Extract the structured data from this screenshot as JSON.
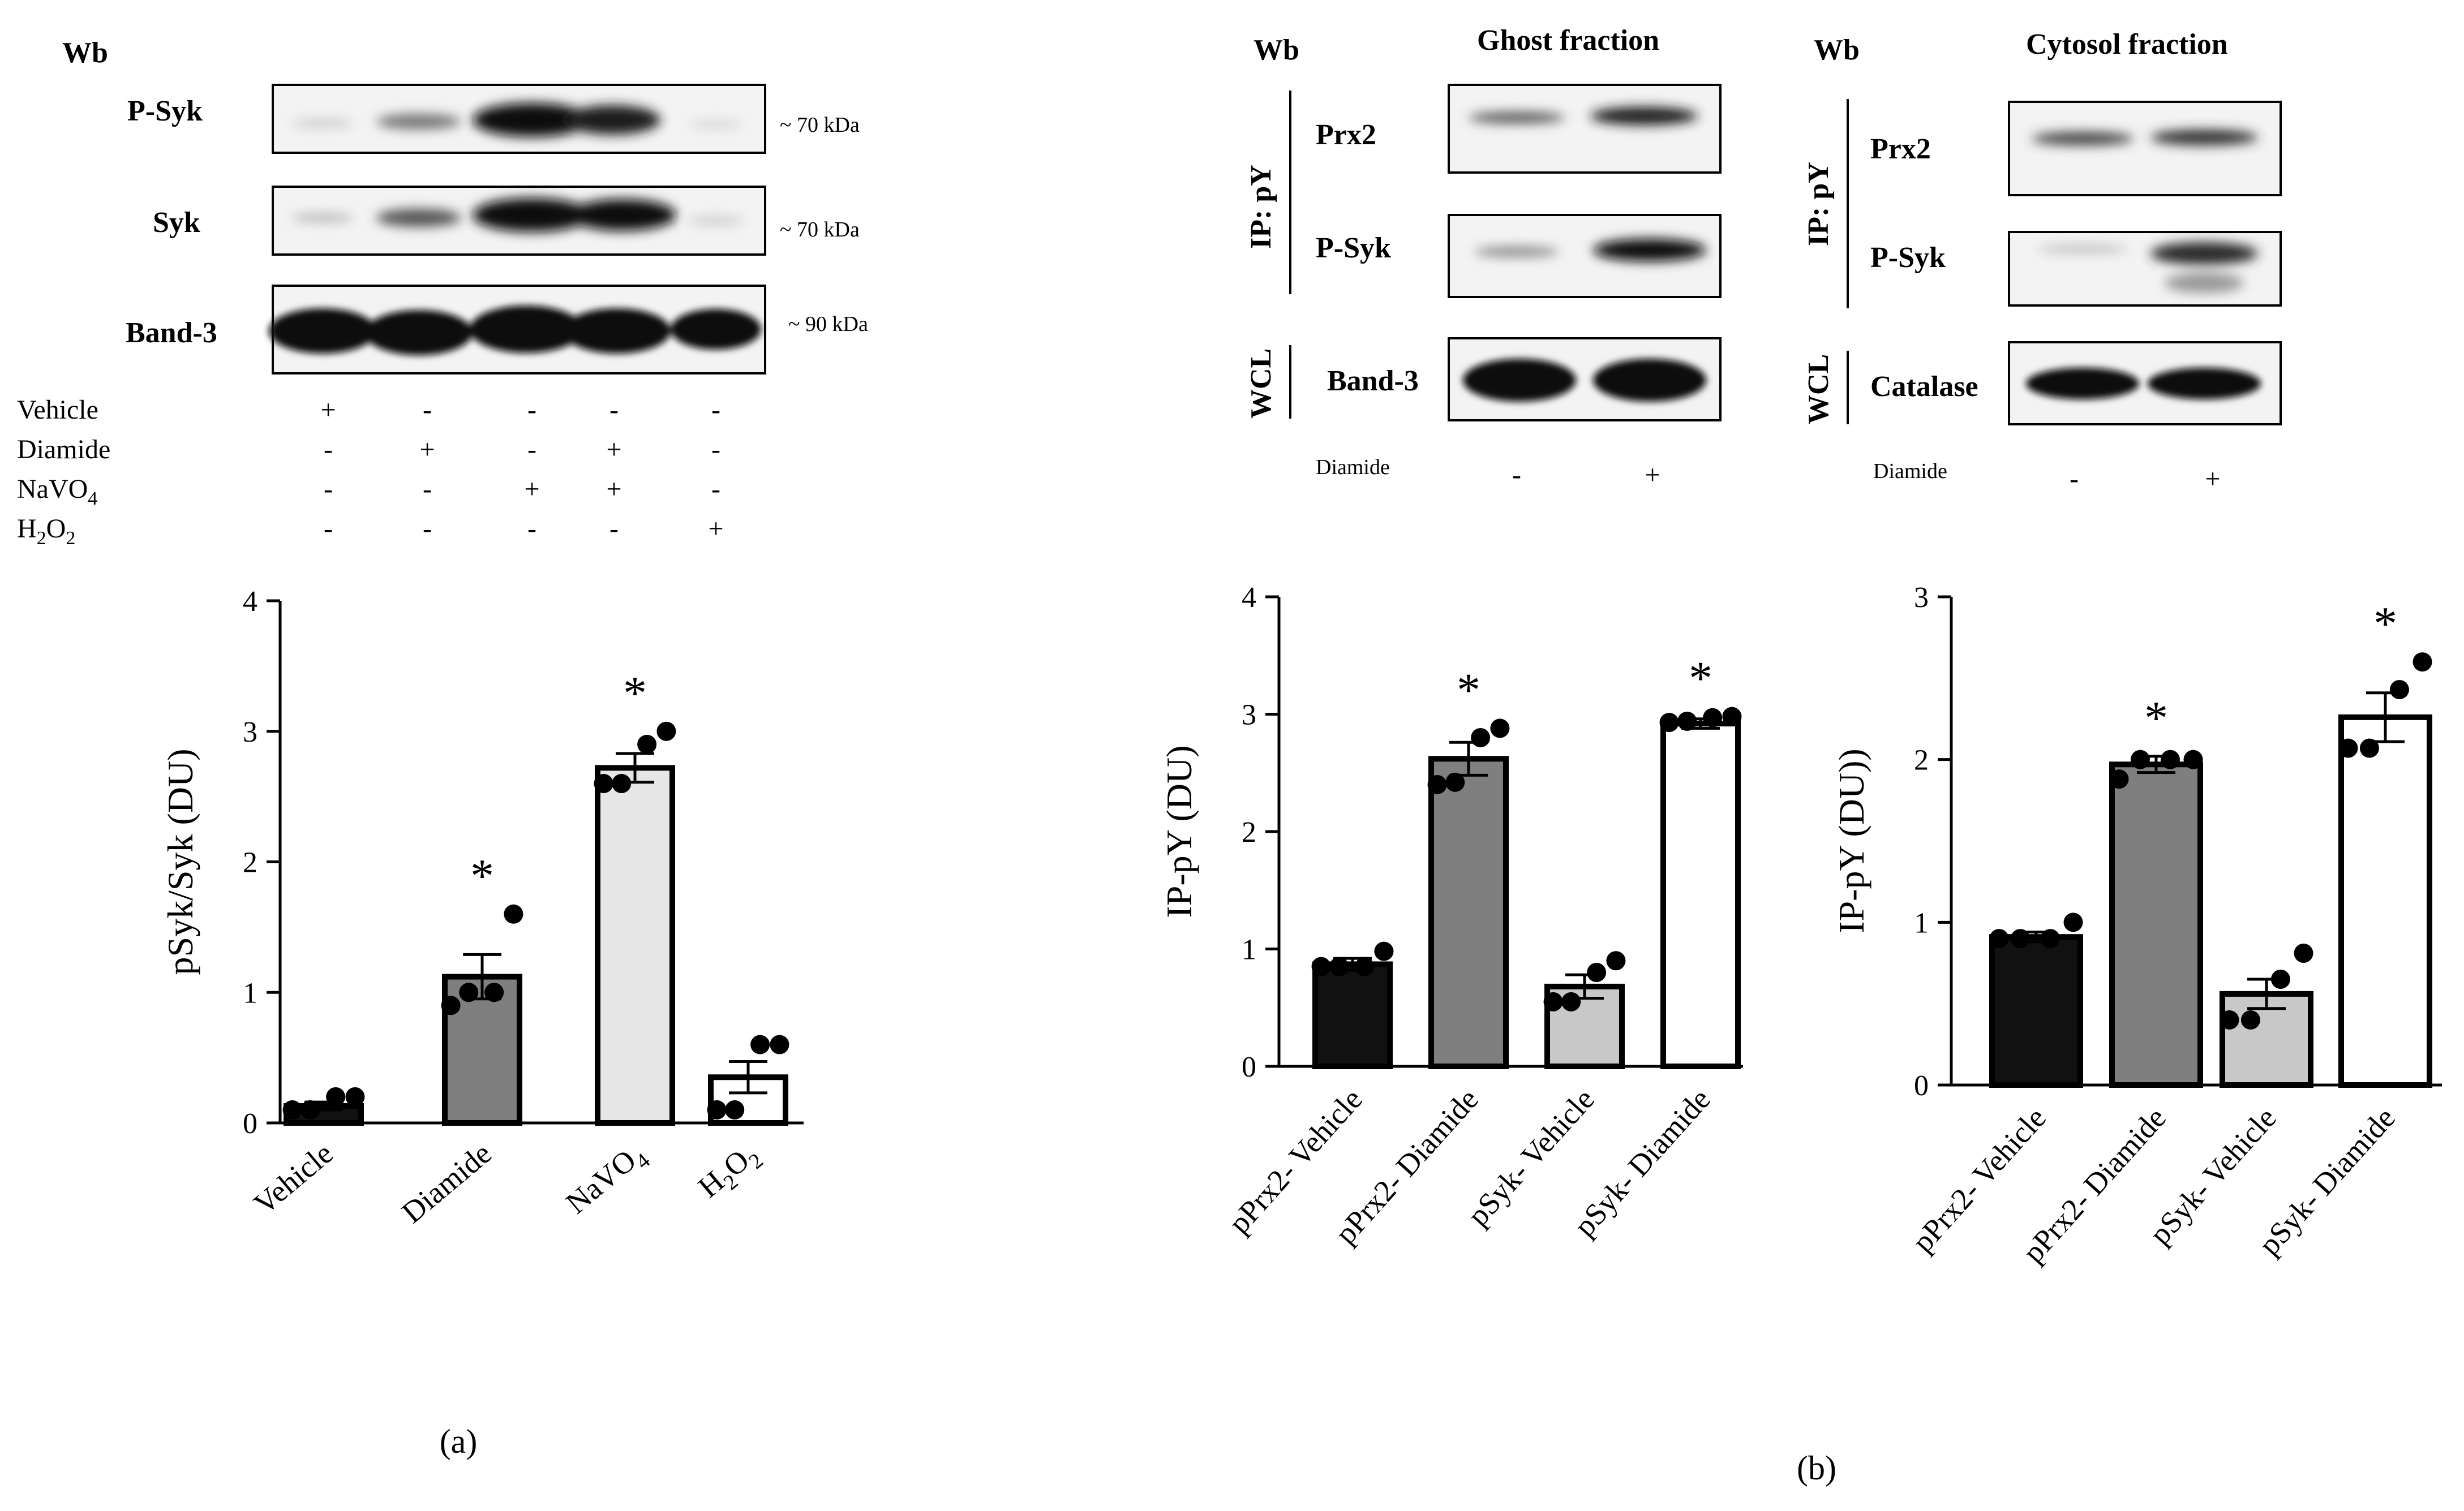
{
  "panel_a": {
    "label": "(a)",
    "blot": {
      "header": "Wb",
      "rows": [
        {
          "label": "P-Syk",
          "size": "~ 70 kDa"
        },
        {
          "label": "Syk",
          "size": "~ 70 kDa"
        },
        {
          "label": "Band-3",
          "size": "~ 90 kDa"
        }
      ],
      "treatments": [
        {
          "label": "Vehicle",
          "marks": [
            "+",
            "-",
            "-",
            "-",
            "-"
          ]
        },
        {
          "label": "Diamide",
          "marks": [
            "-",
            "+",
            "-",
            "+",
            "-"
          ]
        },
        {
          "label": "NaVO",
          "sub": "4",
          "marks": [
            "-",
            "-",
            "+",
            "+",
            "-"
          ]
        },
        {
          "label": "H",
          "sub": "2",
          "label2": "O",
          "sub2": "2",
          "marks": [
            "-",
            "-",
            "-",
            "-",
            "+"
          ]
        }
      ]
    }
  },
  "panel_b": {
    "label": "(b)",
    "blots": [
      {
        "header": "Wb",
        "title": "Ghost fraction",
        "ip_label": "IP: pY",
        "wcl_label": "WCL",
        "rows": [
          "Prx2",
          "P-Syk",
          "Band-3"
        ],
        "diamide_label": "Diamide",
        "marks": [
          "-",
          "+"
        ]
      },
      {
        "header": "Wb",
        "title": "Cytosol fraction",
        "ip_label": "IP: pY",
        "wcl_label": "WCL",
        "rows": [
          "Prx2",
          "P-Syk",
          "Catalase"
        ],
        "diamide_label": "Diamide",
        "marks": [
          "-",
          "+"
        ]
      }
    ]
  },
  "chart_data": [
    {
      "type": "bar",
      "panel": "a",
      "categories": [
        "Vehicle",
        "Diamide",
        "NaVO4",
        "H2O2"
      ],
      "category_labels": [
        {
          "t": "Vehicle"
        },
        {
          "t": "Diamide"
        },
        {
          "t": "NaVO",
          "sub": "4"
        },
        {
          "t": "H",
          "sub": "2",
          "t2": "O",
          "sub2": "2"
        }
      ],
      "values": [
        0.13,
        1.12,
        2.72,
        0.35
      ],
      "errors": [
        0.03,
        0.17,
        0.11,
        0.12
      ],
      "points": [
        [
          0.2,
          0.2,
          0.1,
          0.1
        ],
        [
          1.6,
          1.0,
          1.0,
          0.9
        ],
        [
          3.0,
          2.9,
          2.6,
          2.6
        ],
        [
          0.6,
          0.6,
          0.1,
          0.1
        ]
      ],
      "significant": [
        false,
        true,
        true,
        false
      ],
      "ylabel": "pSyk/Syk (DU)",
      "ylim": [
        0,
        4
      ],
      "yticks": [
        0,
        1,
        2,
        3,
        4
      ],
      "colors": [
        "#111111",
        "#7f7f7f",
        "#e6e6e6",
        "#ffffff"
      ]
    },
    {
      "type": "bar",
      "panel": "b-ghost",
      "categories": [
        "pPrx2- Vehicle",
        "pPrx2- Diamide",
        "pSyk- Vehicle",
        "pSyk- Diamide"
      ],
      "values": [
        0.87,
        2.62,
        0.68,
        2.92
      ],
      "errors": [
        0.05,
        0.14,
        0.1,
        0.04
      ],
      "points": [
        [
          0.98,
          0.85,
          0.85,
          0.85
        ],
        [
          2.88,
          2.8,
          2.42,
          2.4
        ],
        [
          0.9,
          0.8,
          0.55,
          0.55
        ],
        [
          2.98,
          2.97,
          2.94,
          2.93
        ]
      ],
      "significant": [
        false,
        true,
        false,
        true
      ],
      "ylabel": "IP-pY (DU)",
      "ylim": [
        0,
        4
      ],
      "yticks": [
        0,
        1,
        2,
        3,
        4
      ],
      "colors": [
        "#111111",
        "#7f7f7f",
        "#c8c8c8",
        "#ffffff"
      ]
    },
    {
      "type": "bar",
      "panel": "b-cytosol",
      "categories": [
        "pPrx2- Vehicle",
        "pPrx2- Diamide",
        "pSyk- Vehicle",
        "pSyk- Diamide"
      ],
      "values": [
        0.91,
        1.97,
        0.56,
        2.26
      ],
      "errors": [
        0.03,
        0.05,
        0.09,
        0.15
      ],
      "points": [
        [
          1.0,
          0.9,
          0.9,
          0.9
        ],
        [
          2.0,
          2.0,
          2.0,
          1.88
        ],
        [
          0.81,
          0.65,
          0.4,
          0.4
        ],
        [
          2.6,
          2.43,
          2.07,
          2.07
        ]
      ],
      "significant": [
        false,
        true,
        false,
        true
      ],
      "ylabel": "IP-pY (DU))",
      "ylim": [
        0,
        3
      ],
      "yticks": [
        0,
        1,
        2,
        3
      ],
      "colors": [
        "#111111",
        "#7f7f7f",
        "#c8c8c8",
        "#ffffff"
      ]
    }
  ]
}
